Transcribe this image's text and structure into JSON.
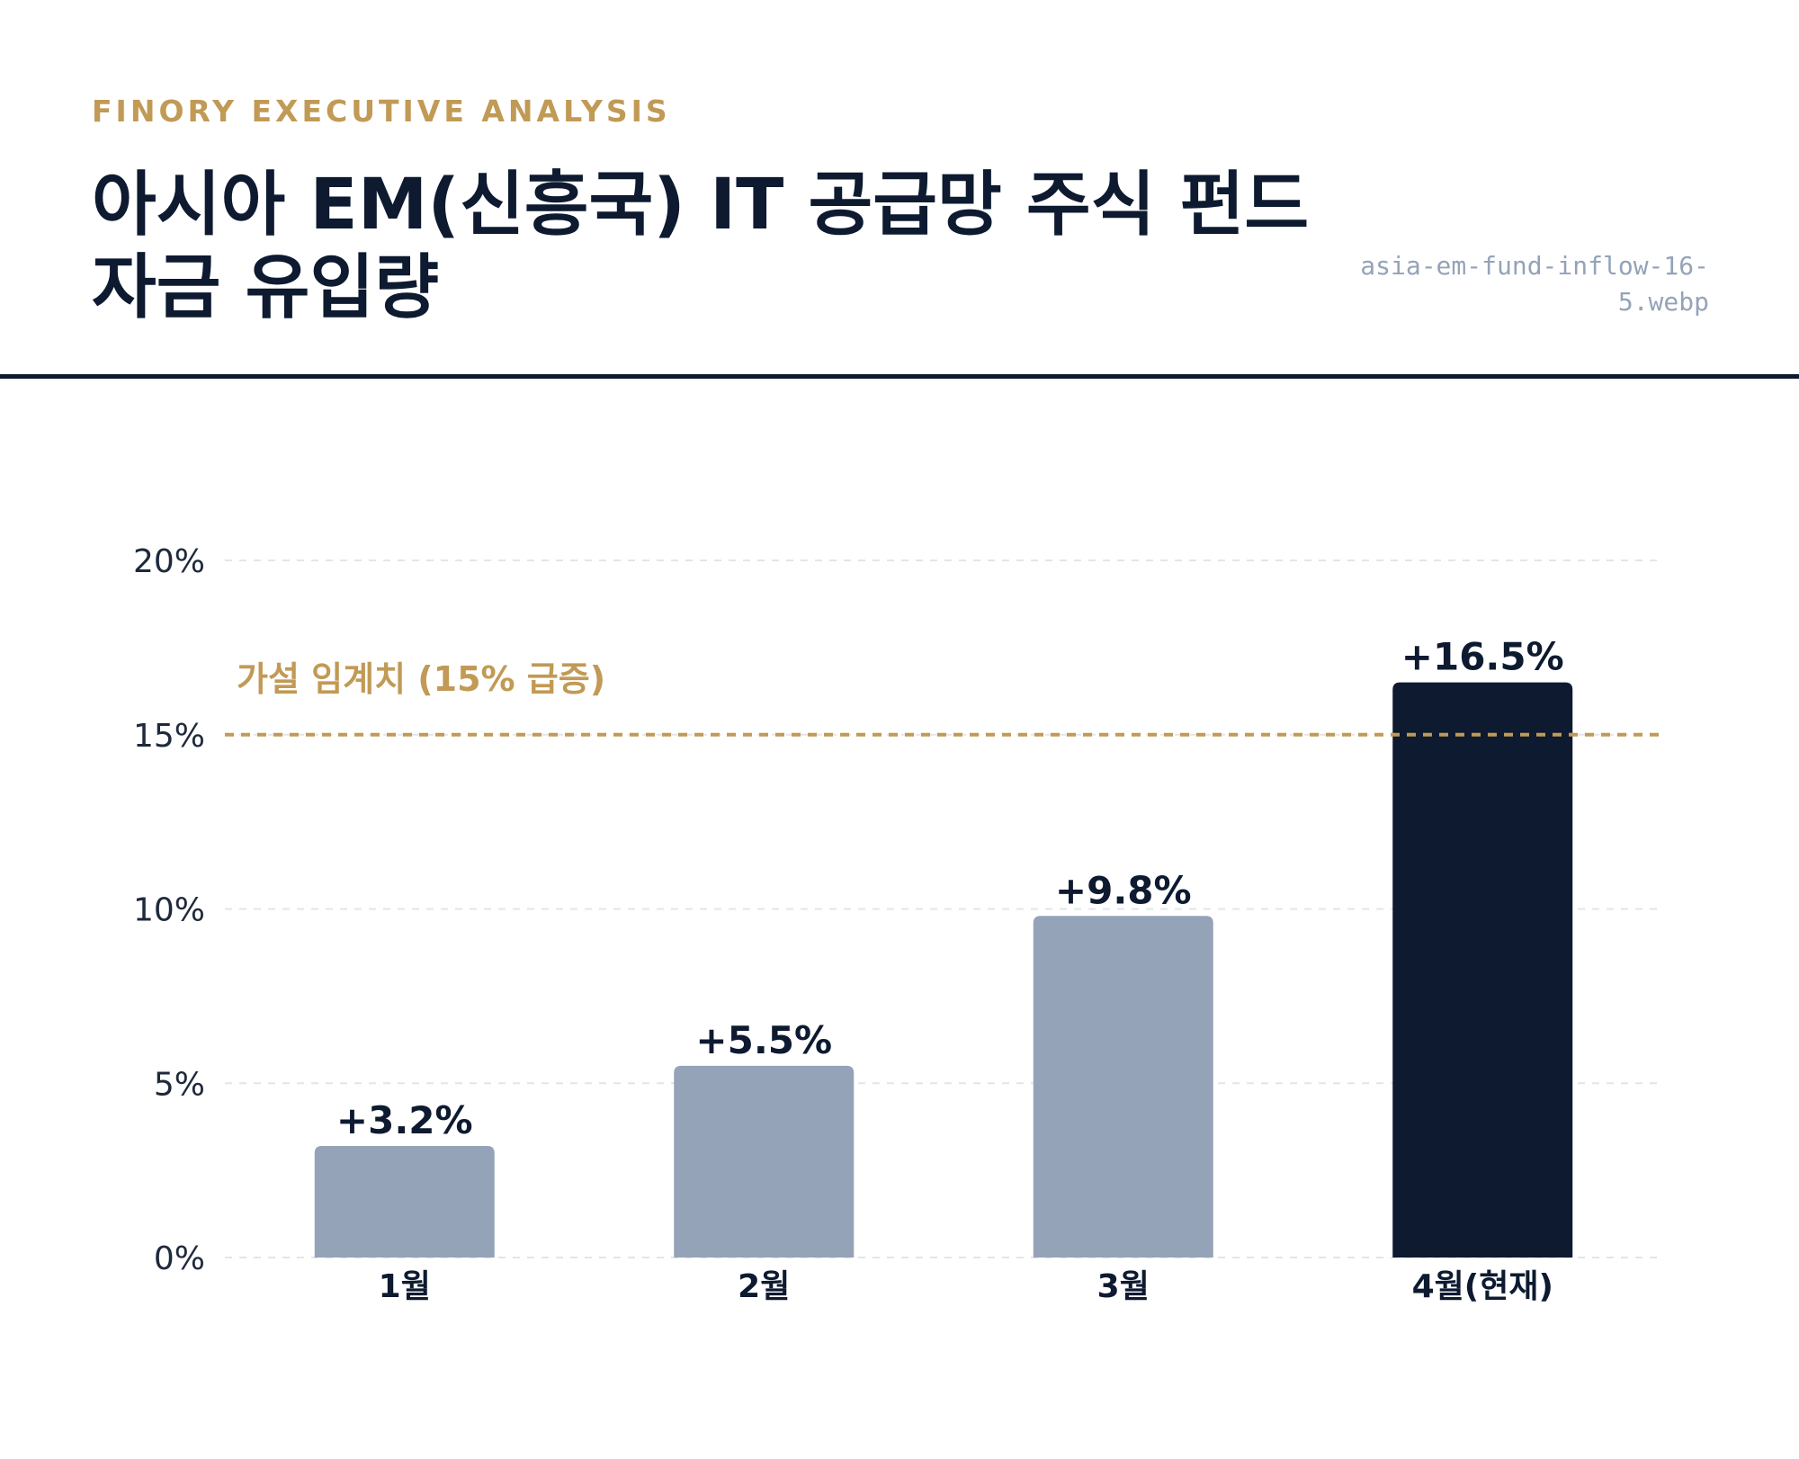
{
  "header": {
    "eyebrow": "FINORY EXECUTIVE ANALYSIS",
    "title_line1": "아시아 EM(신흥국) IT 공급망 주식 펀드",
    "title_line2": "자금 유입량",
    "filename": "asia-em-fund-inflow-16-5.webp"
  },
  "colors": {
    "primary": "#0d1a30",
    "accent": "#c19a56",
    "muted_bar": "#94a3b8",
    "gridline": "#e2e5ea",
    "mono_text": "#94a3b8"
  },
  "chart_data": {
    "type": "bar",
    "title": "아시아 EM(신흥국) IT 공급망 주식 펀드 자금 유입량",
    "xlabel": "",
    "ylabel": "",
    "categories": [
      "1월",
      "2월",
      "3월",
      "4월(현재)"
    ],
    "values": [
      3.2,
      5.5,
      9.8,
      16.5
    ],
    "value_labels": [
      "+3.2%",
      "+5.5%",
      "+9.8%",
      "+16.5%"
    ],
    "highlight_index": 3,
    "ylim": [
      0,
      20
    ],
    "yticks": [
      0,
      5,
      10,
      15,
      20
    ],
    "ytick_labels": [
      "0%",
      "5%",
      "10%",
      "15%",
      "20%"
    ],
    "grid": true,
    "threshold": {
      "value": 15,
      "label": "가설 임계치 (15% 급증)"
    }
  }
}
